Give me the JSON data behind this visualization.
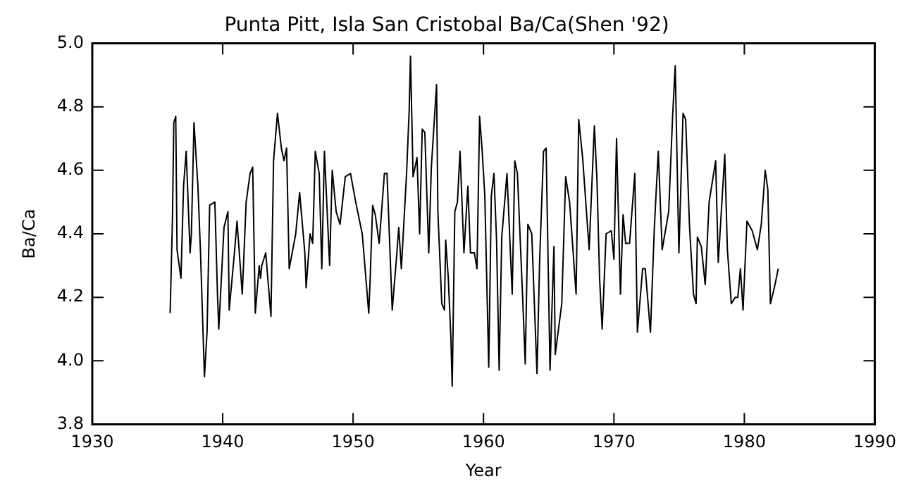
{
  "chart_data": {
    "type": "line",
    "title": "Punta Pitt, Isla San Cristobal Ba/Ca(Shen '92)",
    "xlabel": "Year",
    "ylabel": "Ba/Ca",
    "xlim": [
      1930,
      1990
    ],
    "xticks": [
      1930,
      1940,
      1950,
      1960,
      1970,
      1980,
      1990
    ],
    "ylim": [
      3.8,
      5.0
    ],
    "yticks": [
      {
        "value": 3.8,
        "label": "3.8"
      },
      {
        "value": 4.0,
        "label": "4.0"
      },
      {
        "value": 4.2,
        "label": "4.2"
      },
      {
        "value": 4.4,
        "label": "4.4"
      },
      {
        "value": 4.6,
        "label": "4.6"
      },
      {
        "value": 4.8,
        "label": "4.8"
      },
      {
        "value": 5.0,
        "label": "5.0"
      }
    ],
    "marker": "none",
    "line_style": "solid",
    "series": [
      {
        "color": "#000000",
        "x": [
          1935.97,
          1936.15,
          1936.25,
          1936.4,
          1936.5,
          1936.8,
          1937.0,
          1937.2,
          1937.5,
          1937.6,
          1937.8,
          1938.1,
          1938.3,
          1938.6,
          1938.8,
          1939.0,
          1939.4,
          1939.6,
          1939.7,
          1940.1,
          1940.4,
          1940.5,
          1940.9,
          1941.1,
          1941.5,
          1941.8,
          1942.1,
          1942.3,
          1942.5,
          1942.8,
          1942.9,
          1943.0,
          1943.3,
          1943.7,
          1943.9,
          1944.2,
          1944.5,
          1944.7,
          1944.9,
          1945.1,
          1945.6,
          1945.9,
          1946.3,
          1946.4,
          1946.7,
          1946.9,
          1947.1,
          1947.4,
          1947.6,
          1947.8,
          1948.2,
          1948.4,
          1948.7,
          1949.0,
          1949.4,
          1949.8,
          1950.2,
          1950.7,
          1951.2,
          1951.3,
          1951.5,
          1951.7,
          1952.0,
          1952.4,
          1952.6,
          1953.0,
          1953.3,
          1953.5,
          1953.7,
          1954.1,
          1954.3,
          1954.4,
          1954.6,
          1954.9,
          1955.1,
          1955.3,
          1955.5,
          1955.8,
          1956.0,
          1956.4,
          1956.5,
          1956.8,
          1957.0,
          1957.1,
          1957.3,
          1957.5,
          1957.6,
          1957.8,
          1958.0,
          1958.2,
          1958.5,
          1958.8,
          1959.0,
          1959.3,
          1959.5,
          1959.7,
          1959.9,
          1960.1,
          1960.4,
          1960.6,
          1960.8,
          1961.0,
          1961.2,
          1961.4,
          1961.8,
          1962.2,
          1962.4,
          1962.6,
          1963.0,
          1963.2,
          1963.4,
          1963.7,
          1964.1,
          1964.3,
          1964.6,
          1964.8,
          1965.1,
          1965.4,
          1965.5,
          1966.0,
          1966.3,
          1966.6,
          1967.1,
          1967.3,
          1967.6,
          1968.1,
          1968.5,
          1968.7,
          1968.9,
          1969.1,
          1969.4,
          1969.8,
          1970.0,
          1970.2,
          1970.5,
          1970.7,
          1970.9,
          1971.2,
          1971.6,
          1971.8,
          1972.2,
          1972.4,
          1972.8,
          1973.1,
          1973.4,
          1973.7,
          1974.2,
          1974.5,
          1974.7,
          1974.98,
          1975.3,
          1975.5,
          1975.8,
          1976.1,
          1976.3,
          1976.4,
          1976.7,
          1977.0,
          1977.3,
          1977.8,
          1978.0,
          1978.5,
          1978.7,
          1979.0,
          1979.3,
          1979.5,
          1979.7,
          1979.9,
          1980.2,
          1980.6,
          1981.0,
          1981.3,
          1981.6,
          1981.8,
          1982.0,
          1982.3,
          1982.6
        ],
        "values": [
          4.15,
          4.45,
          4.75,
          4.77,
          4.35,
          4.26,
          4.55,
          4.66,
          4.34,
          4.4,
          4.75,
          4.55,
          4.34,
          3.95,
          4.09,
          4.49,
          4.5,
          4.21,
          4.1,
          4.42,
          4.47,
          4.16,
          4.34,
          4.44,
          4.21,
          4.5,
          4.59,
          4.61,
          4.15,
          4.3,
          4.26,
          4.3,
          4.34,
          4.14,
          4.63,
          4.78,
          4.67,
          4.63,
          4.67,
          4.29,
          4.4,
          4.53,
          4.34,
          4.23,
          4.4,
          4.37,
          4.66,
          4.59,
          4.29,
          4.66,
          4.3,
          4.6,
          4.47,
          4.43,
          4.58,
          4.59,
          4.5,
          4.4,
          4.15,
          4.25,
          4.49,
          4.46,
          4.37,
          4.59,
          4.59,
          4.16,
          4.31,
          4.42,
          4.29,
          4.59,
          4.79,
          4.96,
          4.58,
          4.64,
          4.4,
          4.73,
          4.72,
          4.34,
          4.61,
          4.87,
          4.47,
          4.18,
          4.16,
          4.38,
          4.26,
          4.07,
          3.92,
          4.47,
          4.5,
          4.66,
          4.34,
          4.55,
          4.34,
          4.34,
          4.29,
          4.77,
          4.66,
          4.52,
          3.98,
          4.52,
          4.59,
          4.38,
          3.97,
          4.39,
          4.59,
          4.21,
          4.63,
          4.59,
          4.2,
          3.99,
          4.43,
          4.4,
          3.96,
          4.31,
          4.66,
          4.67,
          3.97,
          4.36,
          4.02,
          4.18,
          4.58,
          4.5,
          4.21,
          4.76,
          4.64,
          4.35,
          4.74,
          4.57,
          4.26,
          4.1,
          4.4,
          4.41,
          4.32,
          4.7,
          4.21,
          4.46,
          4.37,
          4.37,
          4.59,
          4.09,
          4.29,
          4.29,
          4.09,
          4.42,
          4.66,
          4.35,
          4.47,
          4.77,
          4.93,
          4.34,
          4.78,
          4.76,
          4.42,
          4.21,
          4.18,
          4.39,
          4.36,
          4.24,
          4.5,
          4.63,
          4.31,
          4.65,
          4.35,
          4.18,
          4.2,
          4.2,
          4.29,
          4.16,
          4.44,
          4.41,
          4.35,
          4.43,
          4.6,
          4.54,
          4.18,
          4.23,
          4.29
        ]
      }
    ]
  }
}
